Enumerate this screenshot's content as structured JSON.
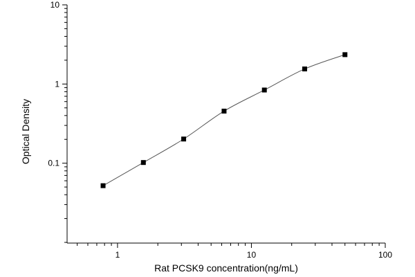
{
  "chart_data": {
    "type": "scatter",
    "title": "",
    "xlabel": "Rat PCSK9 concentration(ng/mL)",
    "ylabel": "Optical Density",
    "xscale": "log",
    "yscale": "log",
    "xlim": [
      0.42,
      100
    ],
    "ylim": [
      0.0098,
      10
    ],
    "grid": false,
    "legend": "none",
    "marker_color": "#000000",
    "curve_color": "#555555",
    "fit_curve": true,
    "x_ticks": [
      {
        "value": 1,
        "label": "1"
      },
      {
        "value": 10,
        "label": "10"
      },
      {
        "value": 100,
        "label": "100"
      }
    ],
    "y_ticks": [
      {
        "value": 0.1,
        "label": "0.1"
      },
      {
        "value": 1,
        "label": "1"
      },
      {
        "value": 10,
        "label": "10"
      }
    ],
    "series": [
      {
        "x": [
          0.78,
          1.56,
          3.12,
          6.25,
          12.5,
          25,
          50
        ],
        "y": [
          0.052,
          0.102,
          0.202,
          0.455,
          0.84,
          1.55,
          2.35
        ]
      }
    ]
  }
}
